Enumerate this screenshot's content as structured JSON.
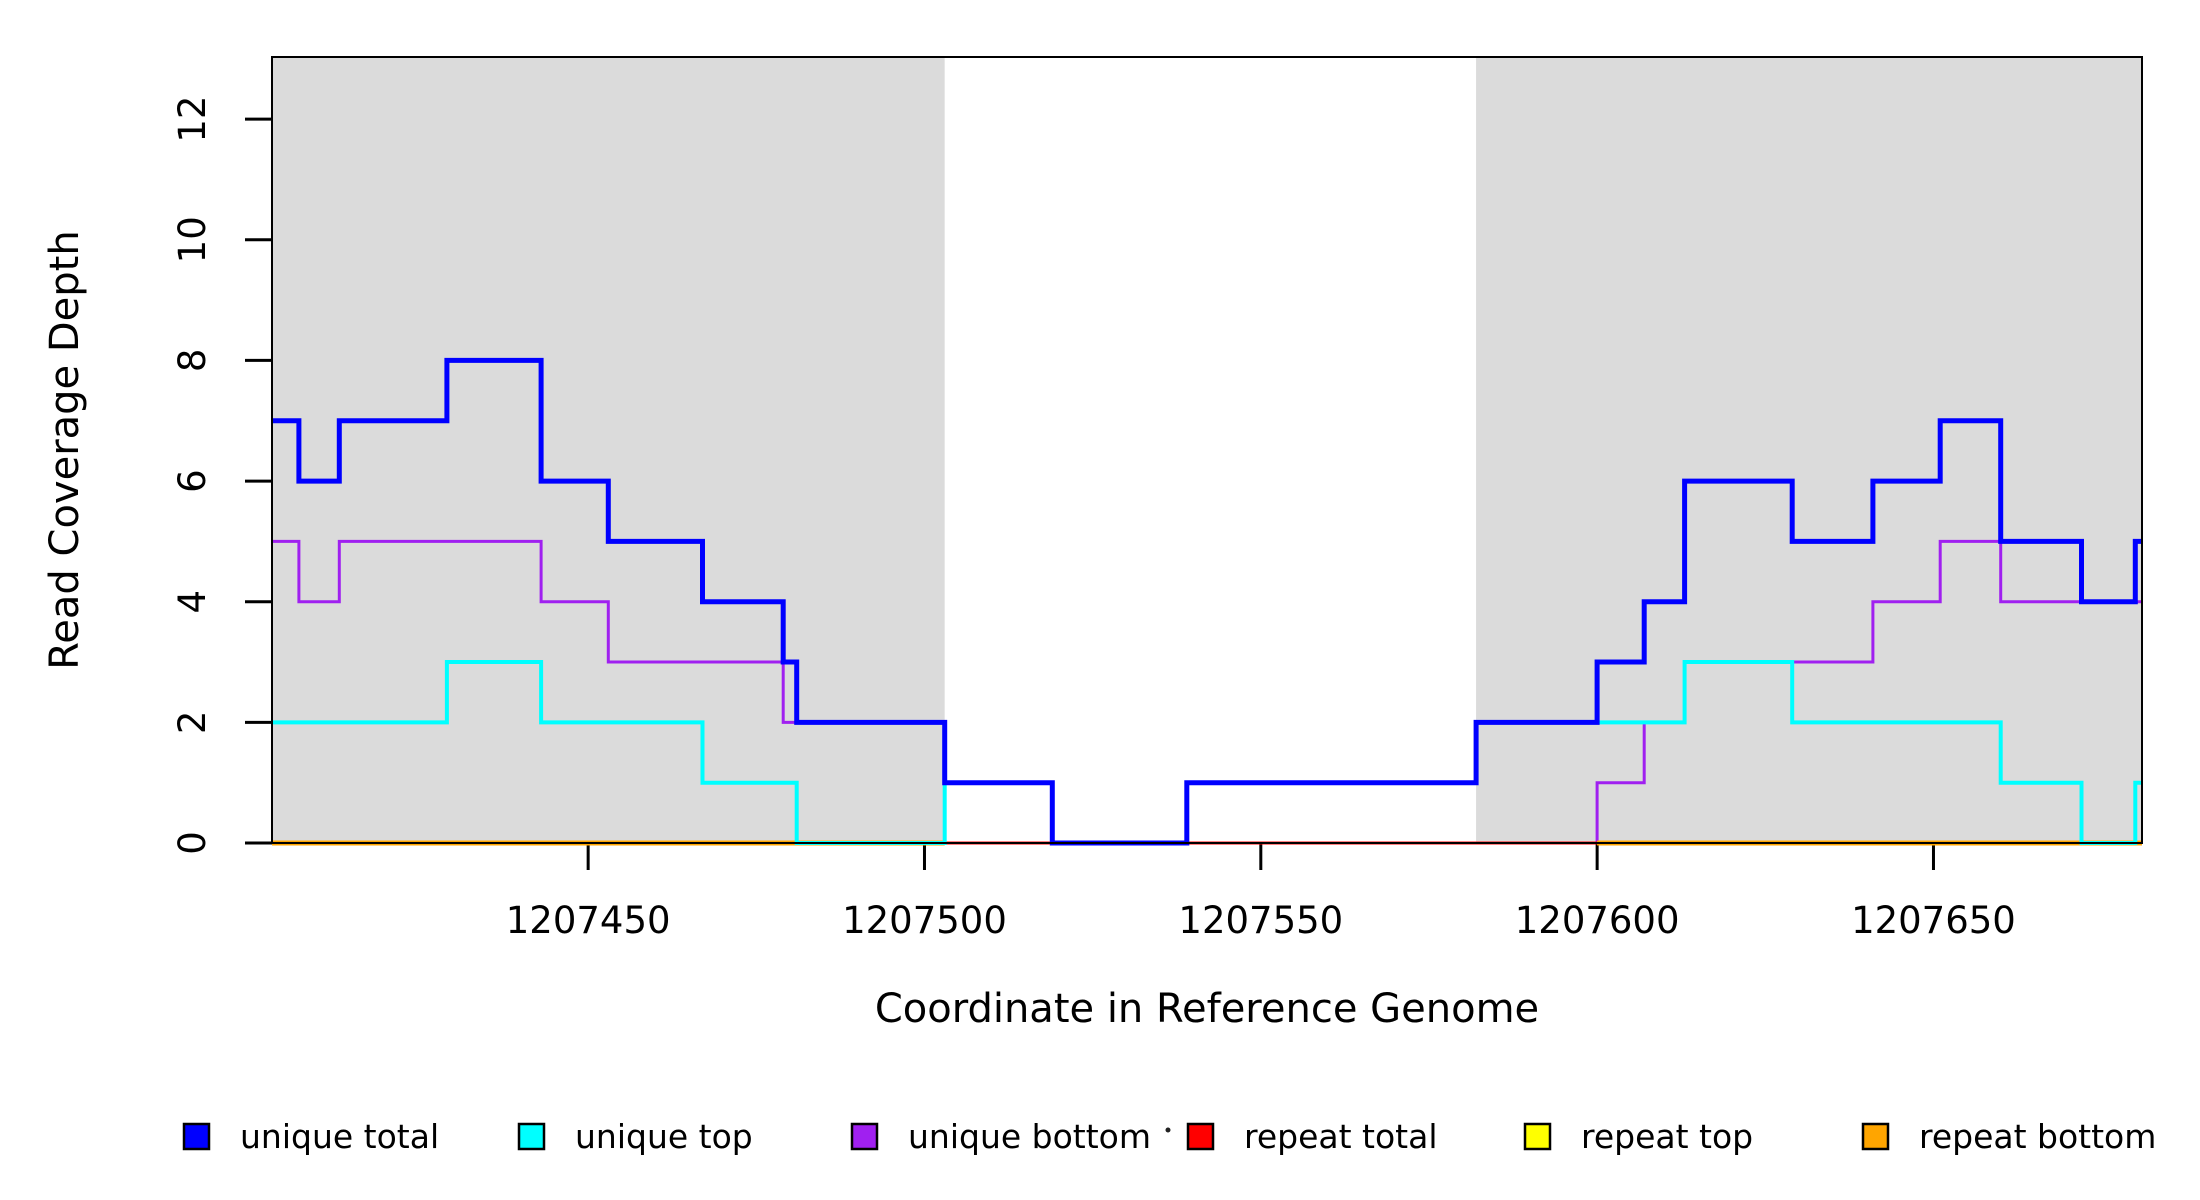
{
  "chart_data": {
    "type": "line",
    "subtype": "step",
    "title": "",
    "xlabel": "Coordinate in Reference Genome",
    "ylabel": "Read Coverage Depth",
    "xlim": [
      1207403,
      1207681
    ],
    "ylim": [
      0,
      13.03
    ],
    "x_ticks": [
      1207450,
      1207500,
      1207550,
      1207600,
      1207650
    ],
    "y_ticks": [
      0,
      2,
      4,
      6,
      8,
      10,
      12
    ],
    "grid": false,
    "plot_background": "#ffffff",
    "box_color": "#000000",
    "shaded_regions": {
      "color": "#dbdbdb",
      "intervals": [
        [
          1207403,
          1207503
        ],
        [
          1207582,
          1207681
        ]
      ]
    },
    "series": [
      {
        "name": "unique bottom",
        "color": "#a020f0",
        "line_width": 3,
        "steps": [
          [
            1207403,
            5
          ],
          [
            1207407,
            4
          ],
          [
            1207413,
            5
          ],
          [
            1207443,
            4
          ],
          [
            1207453,
            3
          ],
          [
            1207479,
            2
          ],
          [
            1207503,
            0
          ],
          [
            1207600,
            1
          ],
          [
            1207607,
            2
          ],
          [
            1207613,
            3
          ],
          [
            1207641,
            4
          ],
          [
            1207651,
            5
          ],
          [
            1207660,
            4
          ],
          [
            1207681,
            null
          ]
        ]
      },
      {
        "name": "repeat total",
        "color": "#ff0000",
        "line_width": 3,
        "steps": [
          [
            1207403,
            0
          ],
          [
            1207681,
            null
          ]
        ]
      },
      {
        "name": "repeat top",
        "color": "#ffff00",
        "line_width": 3,
        "steps": [
          [
            1207403,
            0
          ],
          [
            1207503,
            null
          ],
          [
            1207600,
            0
          ],
          [
            1207681,
            null
          ]
        ]
      },
      {
        "name": "repeat bottom",
        "color": "#ffa500",
        "line_width": 5,
        "steps": [
          [
            1207403,
            0
          ],
          [
            1207503,
            null
          ],
          [
            1207600,
            0
          ],
          [
            1207681,
            null
          ]
        ]
      },
      {
        "name": "unique top",
        "color": "#00ffff",
        "line_width": 4,
        "steps": [
          [
            1207403,
            2
          ],
          [
            1207429,
            3
          ],
          [
            1207443,
            2
          ],
          [
            1207467,
            1
          ],
          [
            1207481,
            0
          ],
          [
            1207503,
            1
          ],
          [
            1207519,
            0
          ],
          [
            1207539,
            1
          ],
          [
            1207582,
            2
          ],
          [
            1207613,
            3
          ],
          [
            1207629,
            2
          ],
          [
            1207660,
            1
          ],
          [
            1207672,
            0
          ],
          [
            1207680,
            1
          ],
          [
            1207681,
            null
          ]
        ]
      },
      {
        "name": "unique total",
        "color": "#0000ff",
        "line_width": 5,
        "steps": [
          [
            1207403,
            7
          ],
          [
            1207407,
            6
          ],
          [
            1207413,
            7
          ],
          [
            1207429,
            8
          ],
          [
            1207443,
            6
          ],
          [
            1207453,
            5
          ],
          [
            1207467,
            4
          ],
          [
            1207479,
            3
          ],
          [
            1207481,
            2
          ],
          [
            1207503,
            1
          ],
          [
            1207519,
            0
          ],
          [
            1207539,
            1
          ],
          [
            1207582,
            2
          ],
          [
            1207600,
            3
          ],
          [
            1207607,
            4
          ],
          [
            1207613,
            6
          ],
          [
            1207629,
            5
          ],
          [
            1207641,
            6
          ],
          [
            1207651,
            7
          ],
          [
            1207660,
            5
          ],
          [
            1207672,
            4
          ],
          [
            1207680,
            5
          ],
          [
            1207681,
            null
          ]
        ]
      }
    ],
    "legend": {
      "position": "bottom",
      "entries": [
        {
          "label": "unique total",
          "color": "#0000ff"
        },
        {
          "label": "unique top",
          "color": "#00ffff"
        },
        {
          "label": "unique bottom",
          "color": "#a020f0"
        },
        {
          "label": "repeat total",
          "color": "#ff0000"
        },
        {
          "label": "repeat top",
          "color": "#ffff00"
        },
        {
          "label": "repeat bottom",
          "color": "#ffa500"
        }
      ]
    }
  }
}
